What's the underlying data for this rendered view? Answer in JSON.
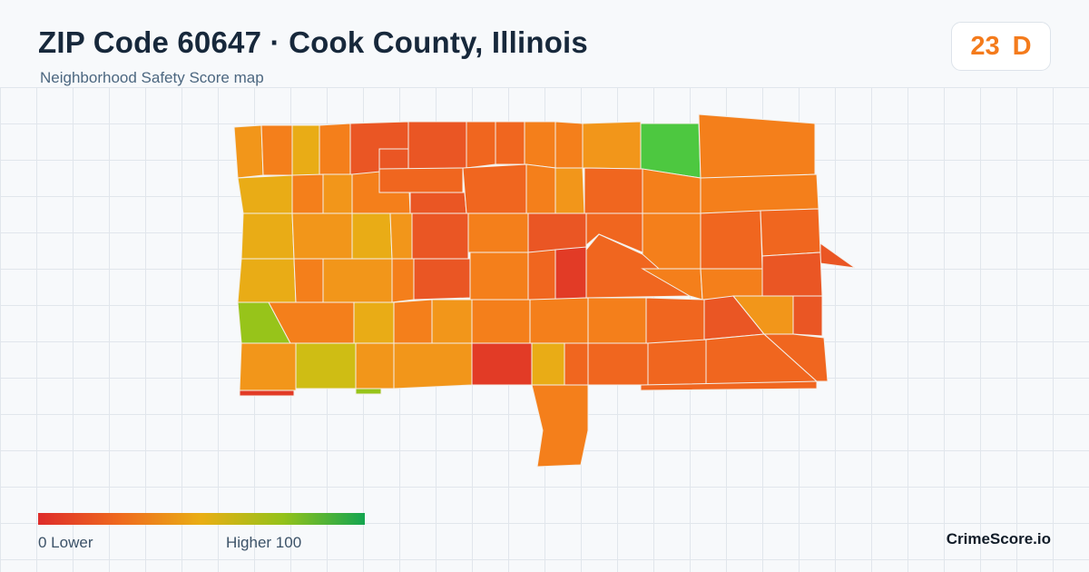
{
  "header": {
    "title": "ZIP Code 60647 · Cook County, Illinois",
    "subtitle": "Neighborhood Safety Score map"
  },
  "score": {
    "value": "23",
    "grade": "D",
    "color": "#f47b1c"
  },
  "legend": {
    "low_label": "0  Lower",
    "high_label": "Higher  100",
    "colors": [
      "#de2c2a",
      "#ef6a1e",
      "#e9ae14",
      "#94c21a",
      "#14a550"
    ]
  },
  "brand": "CrimeScore.io",
  "palette": {
    "red": "#e23b26",
    "red_orange": "#ea5624",
    "orange_dark": "#f0661f",
    "orange": "#f47f1b",
    "amber": "#f2961a",
    "gold": "#e9ac16",
    "olive": "#cfbd14",
    "yellow_green": "#97c41a",
    "green": "#4dc840"
  }
}
